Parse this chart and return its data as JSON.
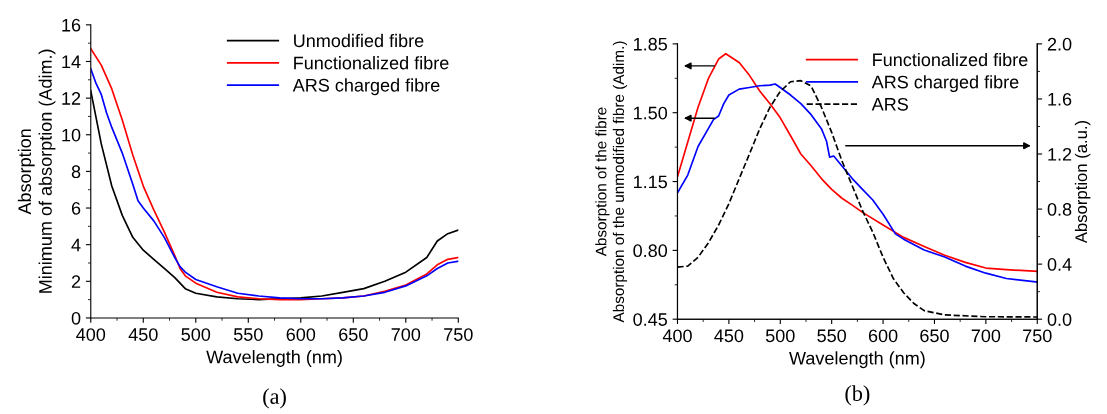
{
  "chart_data": [
    {
      "type": "line",
      "xlabel": "Wavelength (nm)",
      "ylabel": "Absorption\nMinimum of absorption (Adim.)",
      "annotations": [
        "(a)"
      ],
      "xlim": [
        400,
        750
      ],
      "xticks": [
        400,
        450,
        500,
        550,
        600,
        650,
        700,
        750
      ],
      "ylim": [
        0,
        16
      ],
      "yticks": [
        0,
        2,
        4,
        6,
        8,
        10,
        12,
        14,
        16
      ],
      "grid": false,
      "legend": "top right",
      "series": [
        {
          "name": "Unmodified fibre",
          "color": "#000000",
          "x": [
            400,
            410,
            420,
            430,
            440,
            450,
            460,
            470,
            480,
            490,
            500,
            520,
            540,
            560,
            580,
            600,
            620,
            640,
            660,
            680,
            700,
            720,
            730,
            740,
            750
          ],
          "values": [
            12.4,
            9.5,
            7.2,
            5.6,
            4.4,
            3.7,
            3.2,
            2.7,
            2.2,
            1.6,
            1.35,
            1.15,
            1.05,
            1.0,
            1.05,
            1.1,
            1.2,
            1.4,
            1.6,
            2.0,
            2.5,
            3.3,
            4.2,
            4.6,
            4.8
          ]
        },
        {
          "name": "Functionalized fibre",
          "color": "#ff0000",
          "x": [
            400,
            410,
            420,
            430,
            440,
            450,
            460,
            470,
            480,
            485,
            490,
            500,
            520,
            540,
            560,
            580,
            600,
            620,
            640,
            660,
            680,
            700,
            720,
            730,
            740,
            750
          ],
          "values": [
            14.7,
            13.8,
            12.5,
            10.8,
            8.9,
            7.2,
            5.9,
            4.7,
            3.4,
            2.7,
            2.3,
            1.9,
            1.4,
            1.15,
            1.05,
            1.0,
            1.0,
            1.05,
            1.1,
            1.2,
            1.45,
            1.8,
            2.4,
            2.9,
            3.2,
            3.3
          ]
        },
        {
          "name": "ARS charged fibre",
          "color": "#0000ff",
          "x": [
            400,
            405,
            410,
            415,
            420,
            430,
            440,
            445,
            450,
            460,
            470,
            480,
            485,
            490,
            500,
            520,
            540,
            560,
            580,
            600,
            620,
            640,
            660,
            680,
            700,
            720,
            730,
            740,
            750
          ],
          "values": [
            13.6,
            12.8,
            12.2,
            11.2,
            10.4,
            9.0,
            7.3,
            6.4,
            6.0,
            5.3,
            4.4,
            3.3,
            2.8,
            2.5,
            2.1,
            1.7,
            1.35,
            1.2,
            1.1,
            1.05,
            1.05,
            1.1,
            1.2,
            1.4,
            1.75,
            2.3,
            2.7,
            3.0,
            3.1
          ]
        }
      ]
    },
    {
      "type": "line",
      "xlabel": "Wavelength (nm)",
      "ylabel": "Absorption of the fibre\nAbsorption of the unmodified fibre (Adim.)",
      "y2label": "Absorption (a.u.)",
      "annotations": [
        "(b)"
      ],
      "xlim": [
        400,
        750
      ],
      "xticks": [
        400,
        450,
        500,
        550,
        600,
        650,
        700,
        750
      ],
      "ylim": [
        0.45,
        1.85
      ],
      "yticks": [
        {
          "value": 0.45,
          "label": "0.45"
        },
        {
          "value": 0.8,
          "label": "0.80"
        },
        {
          "value": 1.15,
          "label": "1.15"
        },
        {
          "value": 1.5,
          "label": "1.50"
        },
        {
          "value": 1.85,
          "label": "1.85"
        }
      ],
      "y2lim": [
        0,
        2.0
      ],
      "y2ticks": [
        {
          "value": 0,
          "label": "0.0"
        },
        {
          "value": 0.4,
          "label": "0.4"
        },
        {
          "value": 0.8,
          "label": "0.8"
        },
        {
          "value": 1.2,
          "label": "1.2"
        },
        {
          "value": 1.6,
          "label": "1.6"
        },
        {
          "value": 2.0,
          "label": "2.0"
        }
      ],
      "grid": false,
      "legend": "top right",
      "series": [
        {
          "name": "Functionalized fibre",
          "color": "#ff0000",
          "x": [
            400,
            420,
            430,
            440,
            447,
            460,
            470,
            480,
            490,
            500,
            510,
            520,
            530,
            540,
            550,
            560,
            570,
            580,
            600,
            620,
            640,
            660,
            680,
            700,
            720,
            750
          ],
          "values": [
            1.174,
            1.528,
            1.673,
            1.773,
            1.8,
            1.755,
            1.69,
            1.61,
            1.546,
            1.474,
            1.383,
            1.29,
            1.23,
            1.165,
            1.11,
            1.065,
            1.03,
            0.993,
            0.929,
            0.866,
            0.82,
            0.775,
            0.739,
            0.71,
            0.702,
            0.693
          ]
        },
        {
          "name": "ARS charged fibre",
          "color": "#0000ff",
          "x": [
            400,
            410,
            420,
            430,
            435,
            440,
            445,
            450,
            460,
            470,
            480,
            490,
            495,
            500,
            510,
            520,
            530,
            540,
            545,
            548,
            552,
            560,
            570,
            580,
            590,
            600,
            612,
            620,
            640,
            660,
            680,
            700,
            720,
            750
          ],
          "values": [
            1.092,
            1.183,
            1.328,
            1.419,
            1.465,
            1.483,
            1.546,
            1.59,
            1.62,
            1.628,
            1.637,
            1.64,
            1.646,
            1.628,
            1.59,
            1.546,
            1.49,
            1.419,
            1.355,
            1.274,
            1.28,
            1.229,
            1.165,
            1.11,
            1.056,
            0.984,
            0.884,
            0.857,
            0.802,
            0.766,
            0.72,
            0.684,
            0.657,
            0.639
          ]
        },
        {
          "name": "ARS",
          "color": "#000000",
          "axis": "y2",
          "line_style": "dashed",
          "x": [
            400,
            410,
            420,
            430,
            440,
            450,
            460,
            470,
            480,
            490,
            500,
            510,
            520,
            530,
            540,
            550,
            560,
            570,
            580,
            590,
            600,
            610,
            620,
            630,
            640,
            660,
            700,
            750
          ],
          "values": [
            0.378,
            0.386,
            0.45,
            0.554,
            0.684,
            0.839,
            1.02,
            1.2,
            1.383,
            1.54,
            1.655,
            1.725,
            1.733,
            1.694,
            1.54,
            1.357,
            1.15,
            0.969,
            0.788,
            0.632,
            0.45,
            0.295,
            0.192,
            0.114,
            0.062,
            0.031,
            0.018,
            0.016
          ]
        }
      ]
    }
  ]
}
